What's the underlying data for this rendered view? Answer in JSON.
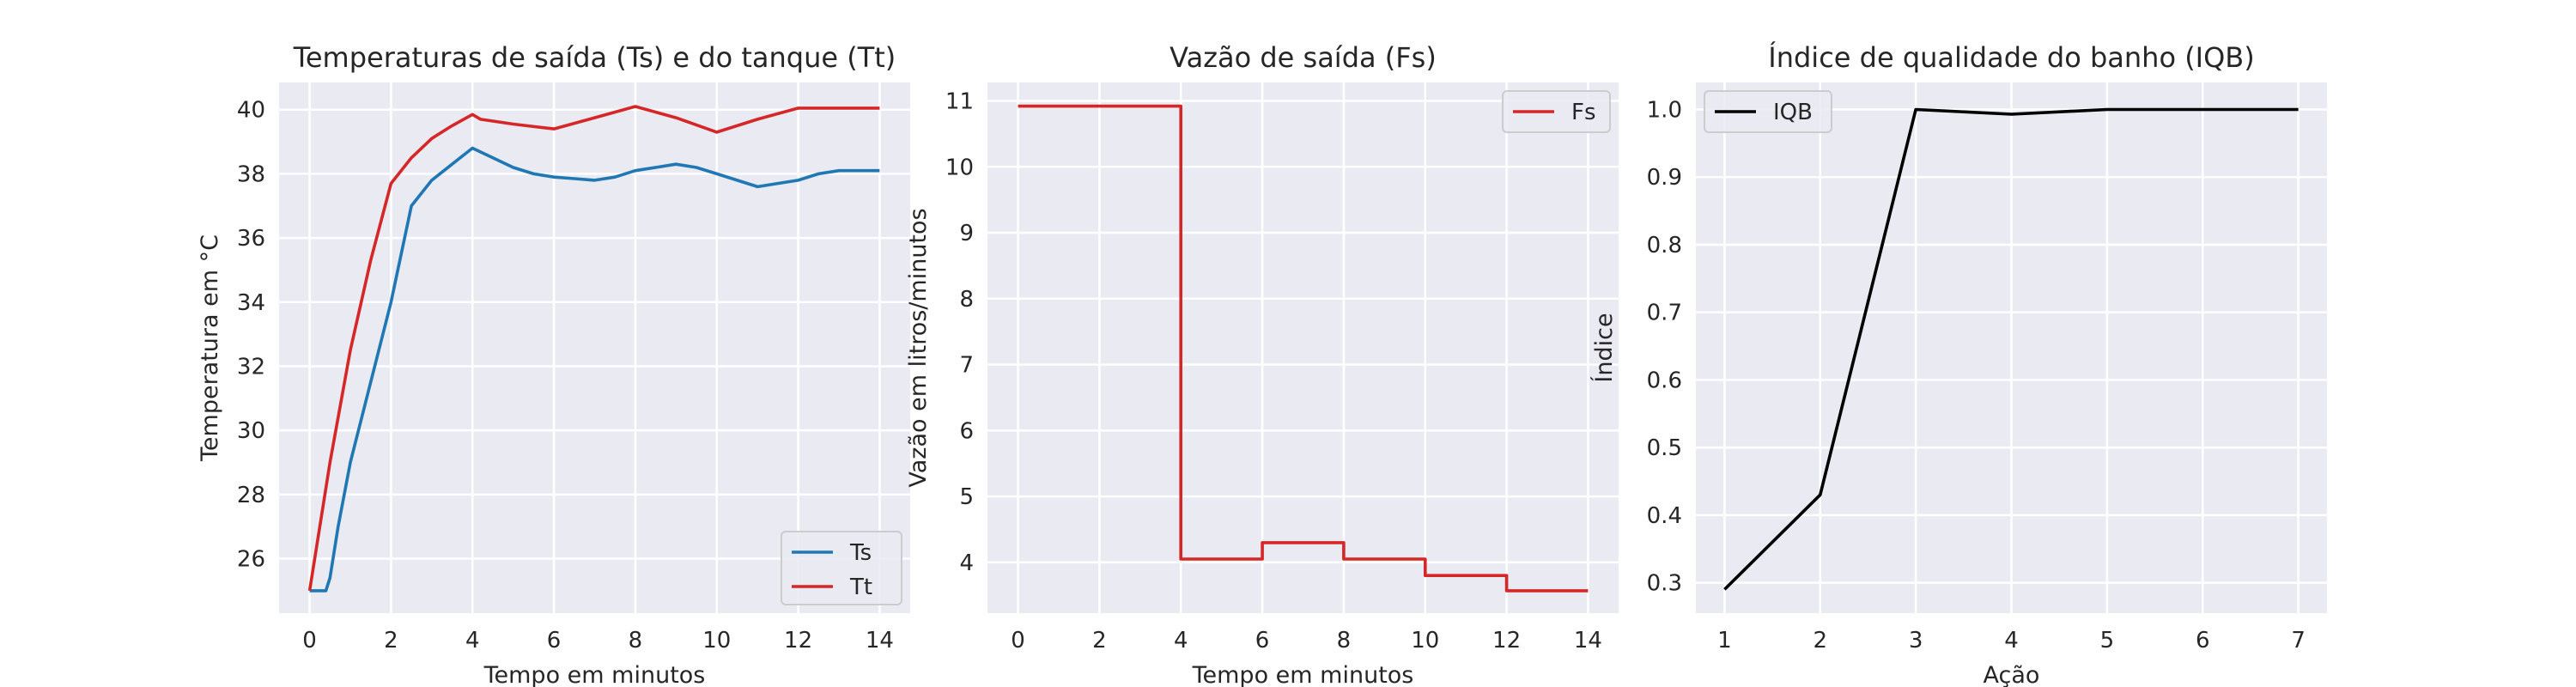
{
  "chart_data": [
    {
      "type": "line",
      "title": "Temperaturas de saída (Ts) e do tanque (Tt)",
      "xlabel": "Tempo em minutos",
      "ylabel": "Temperatura em °C",
      "xlim": [
        -0.75,
        14.75
      ],
      "ylim": [
        24.3,
        40.85
      ],
      "xticks": [
        0,
        2,
        4,
        6,
        8,
        10,
        12,
        14
      ],
      "yticks": [
        26,
        28,
        30,
        32,
        34,
        36,
        38,
        40
      ],
      "grid": true,
      "legend": "lower-right",
      "series": [
        {
          "name": "Ts",
          "color": "#1f77b4",
          "x": [
            0,
            0.4,
            0.5,
            0.7,
            1.0,
            1.5,
            2.0,
            2.5,
            3.0,
            3.5,
            4.0,
            4.5,
            5.0,
            5.5,
            6.0,
            6.5,
            7.0,
            7.5,
            8.0,
            8.5,
            9.0,
            9.5,
            10.0,
            10.5,
            11.0,
            11.5,
            12.0,
            12.5,
            13.0,
            13.5,
            14.0
          ],
          "y": [
            25.0,
            25.0,
            25.4,
            27.0,
            29.0,
            31.5,
            34.0,
            37.0,
            37.8,
            38.3,
            38.8,
            38.5,
            38.2,
            38.0,
            37.9,
            37.85,
            37.8,
            37.9,
            38.1,
            38.2,
            38.3,
            38.2,
            38.0,
            37.8,
            37.6,
            37.7,
            37.8,
            38.0,
            38.1,
            38.1,
            38.1
          ]
        },
        {
          "name": "Tt",
          "color": "#d62728",
          "x": [
            0,
            0.5,
            1.0,
            1.5,
            2.0,
            2.5,
            3.0,
            3.5,
            4.0,
            4.2,
            5.0,
            6.0,
            7.0,
            8.0,
            9.0,
            10.0,
            11.0,
            12.0,
            13.0,
            14.0
          ],
          "y": [
            25.0,
            29.0,
            32.5,
            35.3,
            37.7,
            38.5,
            39.1,
            39.5,
            39.85,
            39.7,
            39.55,
            39.4,
            39.75,
            40.1,
            39.75,
            39.3,
            39.7,
            40.05,
            40.05,
            40.05
          ]
        }
      ]
    },
    {
      "type": "line",
      "title": "Vazão de saída (Fs)",
      "xlabel": "Tempo em minutos",
      "ylabel": "Vazão em litros/minutos",
      "xlim": [
        -0.75,
        14.75
      ],
      "ylim": [
        3.23,
        11.28
      ],
      "xticks": [
        0,
        2,
        4,
        6,
        8,
        10,
        12,
        14
      ],
      "yticks": [
        4,
        5,
        6,
        7,
        8,
        9,
        10,
        11
      ],
      "grid": true,
      "legend": "top-right",
      "series": [
        {
          "name": "Fs",
          "color": "#d62728",
          "x": [
            0,
            4,
            4,
            6,
            6,
            8,
            8,
            10,
            10,
            12,
            12,
            14
          ],
          "y": [
            10.92,
            10.92,
            4.05,
            4.05,
            4.3,
            4.3,
            4.05,
            4.05,
            3.8,
            3.8,
            3.57,
            3.57
          ]
        }
      ]
    },
    {
      "type": "line",
      "title": "Índice de qualidade do banho (IQB)",
      "xlabel": "Ação",
      "ylabel": "Índice",
      "xlim": [
        0.7,
        7.3
      ],
      "ylim": [
        0.255,
        1.04
      ],
      "xticks": [
        1,
        2,
        3,
        4,
        5,
        6,
        7
      ],
      "yticks": [
        0.3,
        0.4,
        0.5,
        0.6,
        0.7,
        0.8,
        0.9,
        1.0
      ],
      "ytick_labels": [
        "0.3",
        "0.4",
        "0.5",
        "0.6",
        "0.7",
        "0.8",
        "0.9",
        "1.0"
      ],
      "grid": true,
      "legend": "top-left",
      "series": [
        {
          "name": "IQB",
          "color": "#000000",
          "x": [
            1,
            2,
            3,
            4,
            5,
            6,
            7
          ],
          "y": [
            0.29,
            0.43,
            1.0,
            0.993,
            1.0,
            1.0,
            1.0
          ]
        }
      ]
    }
  ]
}
